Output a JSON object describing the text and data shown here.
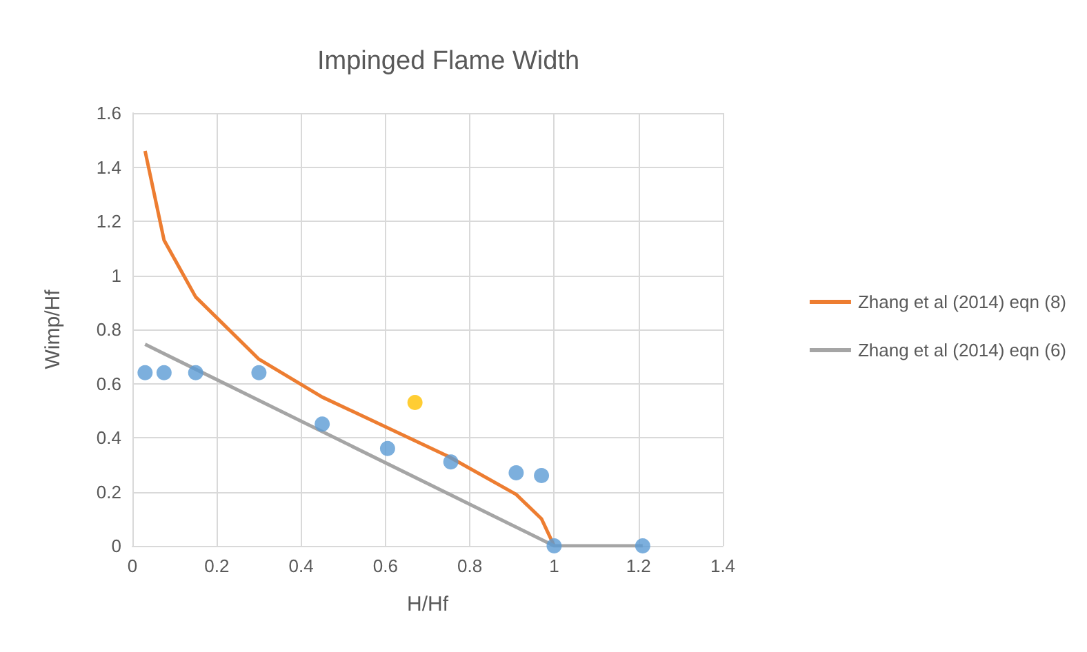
{
  "chart_data": {
    "type": "scatter",
    "title": "Impinged Flame Width",
    "xlabel": "H/Hf",
    "ylabel": "Wimp/Hf",
    "xlim": [
      0,
      1.4
    ],
    "xticks": [
      0,
      0.2,
      0.4,
      0.6,
      0.8,
      1,
      1.2,
      1.4
    ],
    "ylim": [
      0,
      1.6
    ],
    "yticks": [
      0,
      0.2,
      0.4,
      0.6,
      0.8,
      1,
      1.2,
      1.4,
      1.6
    ],
    "grid": true,
    "legend": "right",
    "series": [
      {
        "marker": "circle",
        "color": "#5b9bd5",
        "x": [
          0.03,
          0.075,
          0.15,
          0.3,
          0.45,
          0.605,
          0.755,
          0.91,
          0.97,
          1,
          1.21
        ],
        "values": [
          0.64,
          0.64,
          0.64,
          0.64,
          0.45,
          0.36,
          0.31,
          0.27,
          0.26,
          0,
          0
        ]
      },
      {
        "marker": "circle",
        "color": "#ffc000",
        "x": [
          0.67
        ],
        "values": [
          0.53
        ]
      },
      {
        "type": "line",
        "name": "Zhang et al (2014) eqn (8)",
        "color": "#ed7d31",
        "x": [
          0.03,
          0.075,
          0.15,
          0.3,
          0.45,
          0.6,
          0.75,
          0.91,
          0.97,
          1
        ],
        "values": [
          1.46,
          1.13,
          0.92,
          0.69,
          0.55,
          0.44,
          0.33,
          0.19,
          0.1,
          0
        ]
      },
      {
        "type": "line",
        "name": "Zhang et al (2014) eqn (6)",
        "color": "#a5a5a5",
        "x": [
          0.03,
          1,
          1.21
        ],
        "values": [
          0.745,
          0,
          0
        ]
      }
    ]
  }
}
